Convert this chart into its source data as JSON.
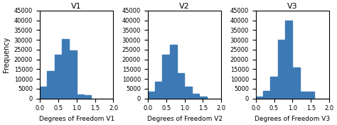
{
  "titles": [
    "V1",
    "V2",
    "V3"
  ],
  "xlabels": [
    "Degrees of Freedom V1",
    "Degrees of Freedom V2",
    "Degrees of Freedom V3"
  ],
  "ylabel": "Frequency",
  "ylim": [
    0,
    45000
  ],
  "yticks": [
    0,
    5000,
    10000,
    15000,
    20000,
    25000,
    30000,
    35000,
    40000,
    45000
  ],
  "xlim": [
    0.0,
    2.0
  ],
  "xticks": [
    0.0,
    0.5,
    1.0,
    1.5,
    2.0
  ],
  "bar_color": "#3d7ab5",
  "bin_edges": [
    0.0,
    0.2,
    0.4,
    0.6,
    0.8,
    1.0,
    1.2,
    1.4,
    1.6,
    1.8,
    2.0
  ],
  "hist_v1": [
    6000,
    14000,
    22500,
    30500,
    24500,
    2000,
    1500,
    0,
    0,
    0
  ],
  "hist_v2": [
    3500,
    8500,
    22500,
    27500,
    13000,
    6000,
    2500,
    1000,
    0,
    0
  ],
  "hist_v3": [
    1000,
    4000,
    11000,
    30000,
    40000,
    16000,
    3500,
    3500,
    0,
    0
  ],
  "figsize": [
    4.74,
    1.76
  ],
  "dpi": 100
}
